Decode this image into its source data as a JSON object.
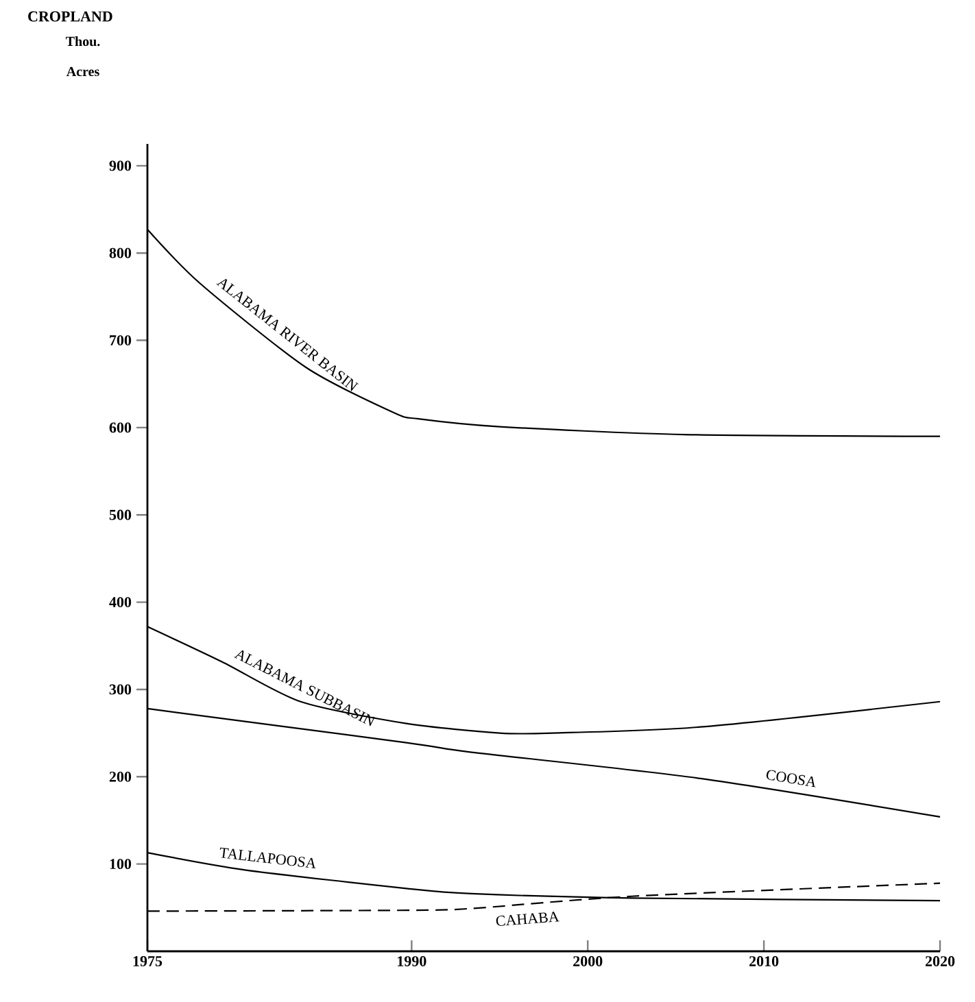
{
  "chart_data": {
    "type": "line",
    "title": "CROPLAND",
    "ylabel": "Thou. Acres",
    "xlim": [
      1975,
      2020
    ],
    "xticks": [
      1975,
      1990,
      2000,
      2010,
      2020
    ],
    "ylim": [
      0,
      925
    ],
    "yticks": [
      100,
      200,
      300,
      400,
      500,
      600,
      700,
      800,
      900
    ],
    "series": [
      {
        "name": "ALABAMA RIVER BASIN",
        "color": "#000000",
        "line_style": "solid",
        "x": [
          1975,
          1978,
          1984,
          1989,
          1990.4,
          1995,
          2005.5,
          2020
        ],
        "values": [
          827,
          765,
          669,
          617,
          610,
          601,
          592,
          590
        ]
      },
      {
        "name": "ALABAMA SUBBASIN",
        "color": "#000000",
        "line_style": "solid",
        "x": [
          1975,
          1979.3,
          1983.7,
          1989.7,
          1995,
          1998,
          2006.4,
          2020
        ],
        "values": [
          372,
          331,
          286,
          261,
          250,
          250,
          257,
          286
        ]
      },
      {
        "name": "COOSA",
        "color": "#000000",
        "line_style": "solid",
        "x": [
          1975,
          1989.7,
          1993.4,
          2006.4,
          2020
        ],
        "values": [
          278,
          239,
          228,
          198,
          154
        ]
      },
      {
        "name": "TALLAPOOSA",
        "color": "#000000",
        "line_style": "solid",
        "x": [
          1975,
          1980.6,
          1989.7,
          1993.4,
          2002.5,
          2020
        ],
        "values": [
          113,
          93,
          72,
          66,
          61,
          58
        ]
      },
      {
        "name": "CAHABA",
        "color": "#000000",
        "line_style": "dashed",
        "x": [
          1975,
          1989.7,
          1993.4,
          2002.5,
          2020
        ],
        "values": [
          46,
          47,
          49,
          63,
          78
        ]
      }
    ]
  }
}
